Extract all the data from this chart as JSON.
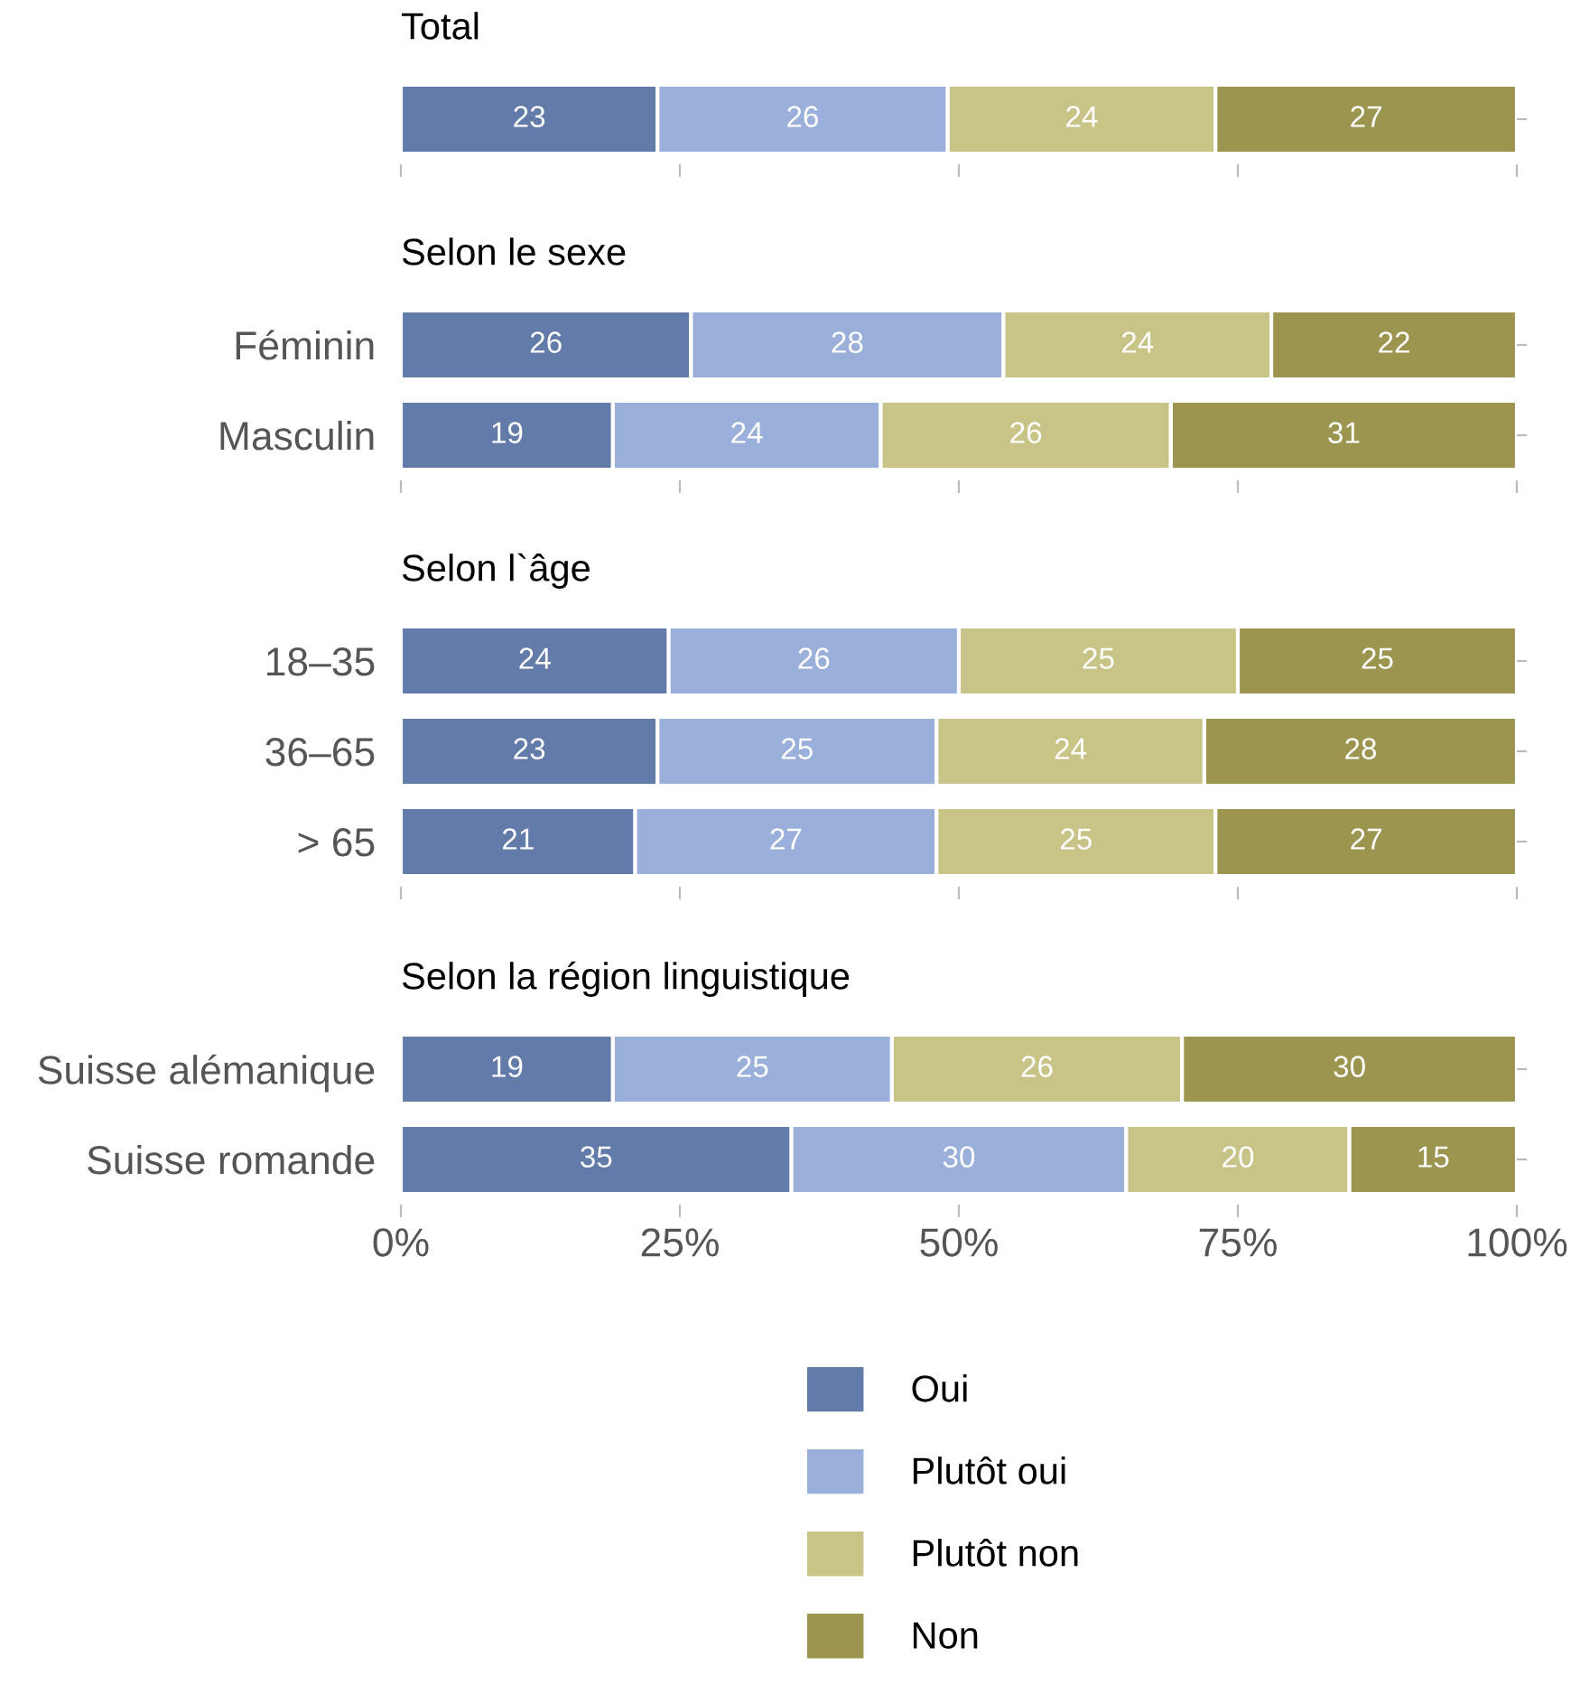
{
  "chart_data": [
    {
      "type": "bar",
      "orientation": "horizontal",
      "stacked": true,
      "title": "Total",
      "categories": [
        null
      ],
      "xlim": [
        0,
        100
      ],
      "xticks": [
        {
          "value": 0,
          "label": null
        },
        {
          "value": 25,
          "label": null
        },
        {
          "value": 50,
          "label": null
        },
        {
          "value": 75,
          "label": null
        },
        {
          "value": 100,
          "label": null
        }
      ],
      "tick_labels": false,
      "data_labels": true,
      "grid": false,
      "series": [
        {
          "color": "#637ba8",
          "values": [
            23
          ]
        },
        {
          "color": "#9aafd9",
          "values": [
            26
          ]
        },
        {
          "color": "#c8c487",
          "values": [
            24
          ]
        },
        {
          "color": "#9c954f",
          "values": [
            27
          ]
        }
      ]
    },
    {
      "type": "bar",
      "orientation": "horizontal",
      "stacked": true,
      "title": "Selon le sexe",
      "categories": [
        "Féminin",
        "Masculin"
      ],
      "xlim": [
        0,
        100
      ],
      "xticks": [
        {
          "value": 0,
          "label": null
        },
        {
          "value": 25,
          "label": null
        },
        {
          "value": 50,
          "label": null
        },
        {
          "value": 75,
          "label": null
        },
        {
          "value": 100,
          "label": null
        }
      ],
      "tick_labels": "y",
      "data_labels": true,
      "grid": false,
      "series": [
        {
          "color": "#637ba8",
          "values": [
            26,
            19
          ]
        },
        {
          "color": "#9aafd9",
          "values": [
            28,
            24
          ]
        },
        {
          "color": "#c8c487",
          "values": [
            24,
            26
          ]
        },
        {
          "color": "#9c954f",
          "values": [
            22,
            31
          ]
        }
      ]
    },
    {
      "type": "bar",
      "orientation": "horizontal",
      "stacked": true,
      "title": "Selon l`âge",
      "categories": [
        "18–35",
        "36–65",
        "> 65"
      ],
      "xlim": [
        0,
        100
      ],
      "xticks": [
        {
          "value": 0,
          "label": null
        },
        {
          "value": 25,
          "label": null
        },
        {
          "value": 50,
          "label": null
        },
        {
          "value": 75,
          "label": null
        },
        {
          "value": 100,
          "label": null
        }
      ],
      "tick_labels": "y",
      "data_labels": true,
      "grid": false,
      "series": [
        {
          "color": "#637ba8",
          "values": [
            24,
            23,
            21
          ]
        },
        {
          "color": "#9aafd9",
          "values": [
            26,
            25,
            27
          ]
        },
        {
          "color": "#c8c487",
          "values": [
            25,
            24,
            25
          ]
        },
        {
          "color": "#9c954f",
          "values": [
            25,
            28,
            27
          ]
        }
      ]
    },
    {
      "type": "bar",
      "orientation": "horizontal",
      "stacked": true,
      "title": "Selon la région linguistique",
      "categories": [
        "Suisse alémanique",
        "Suisse romande"
      ],
      "xlim": [
        0,
        100
      ],
      "xticks": [
        {
          "value": 0,
          "label": "0%"
        },
        {
          "value": 25,
          "label": "25%"
        },
        {
          "value": 50,
          "label": "50%"
        },
        {
          "value": 75,
          "label": "75%"
        },
        {
          "value": 100,
          "label": "100%"
        }
      ],
      "data_labels": true,
      "grid": false,
      "legend": "bottom",
      "series": [
        {
          "name": "Oui",
          "color": "#637ba8",
          "values": [
            19,
            35
          ]
        },
        {
          "name": "Plutôt oui",
          "color": "#9aafd9",
          "values": [
            25,
            30
          ]
        },
        {
          "name": "Plutôt non",
          "color": "#c8c487",
          "values": [
            26,
            20
          ]
        },
        {
          "name": "Non",
          "color": "#9c954f",
          "values": [
            30,
            15
          ]
        }
      ]
    }
  ]
}
